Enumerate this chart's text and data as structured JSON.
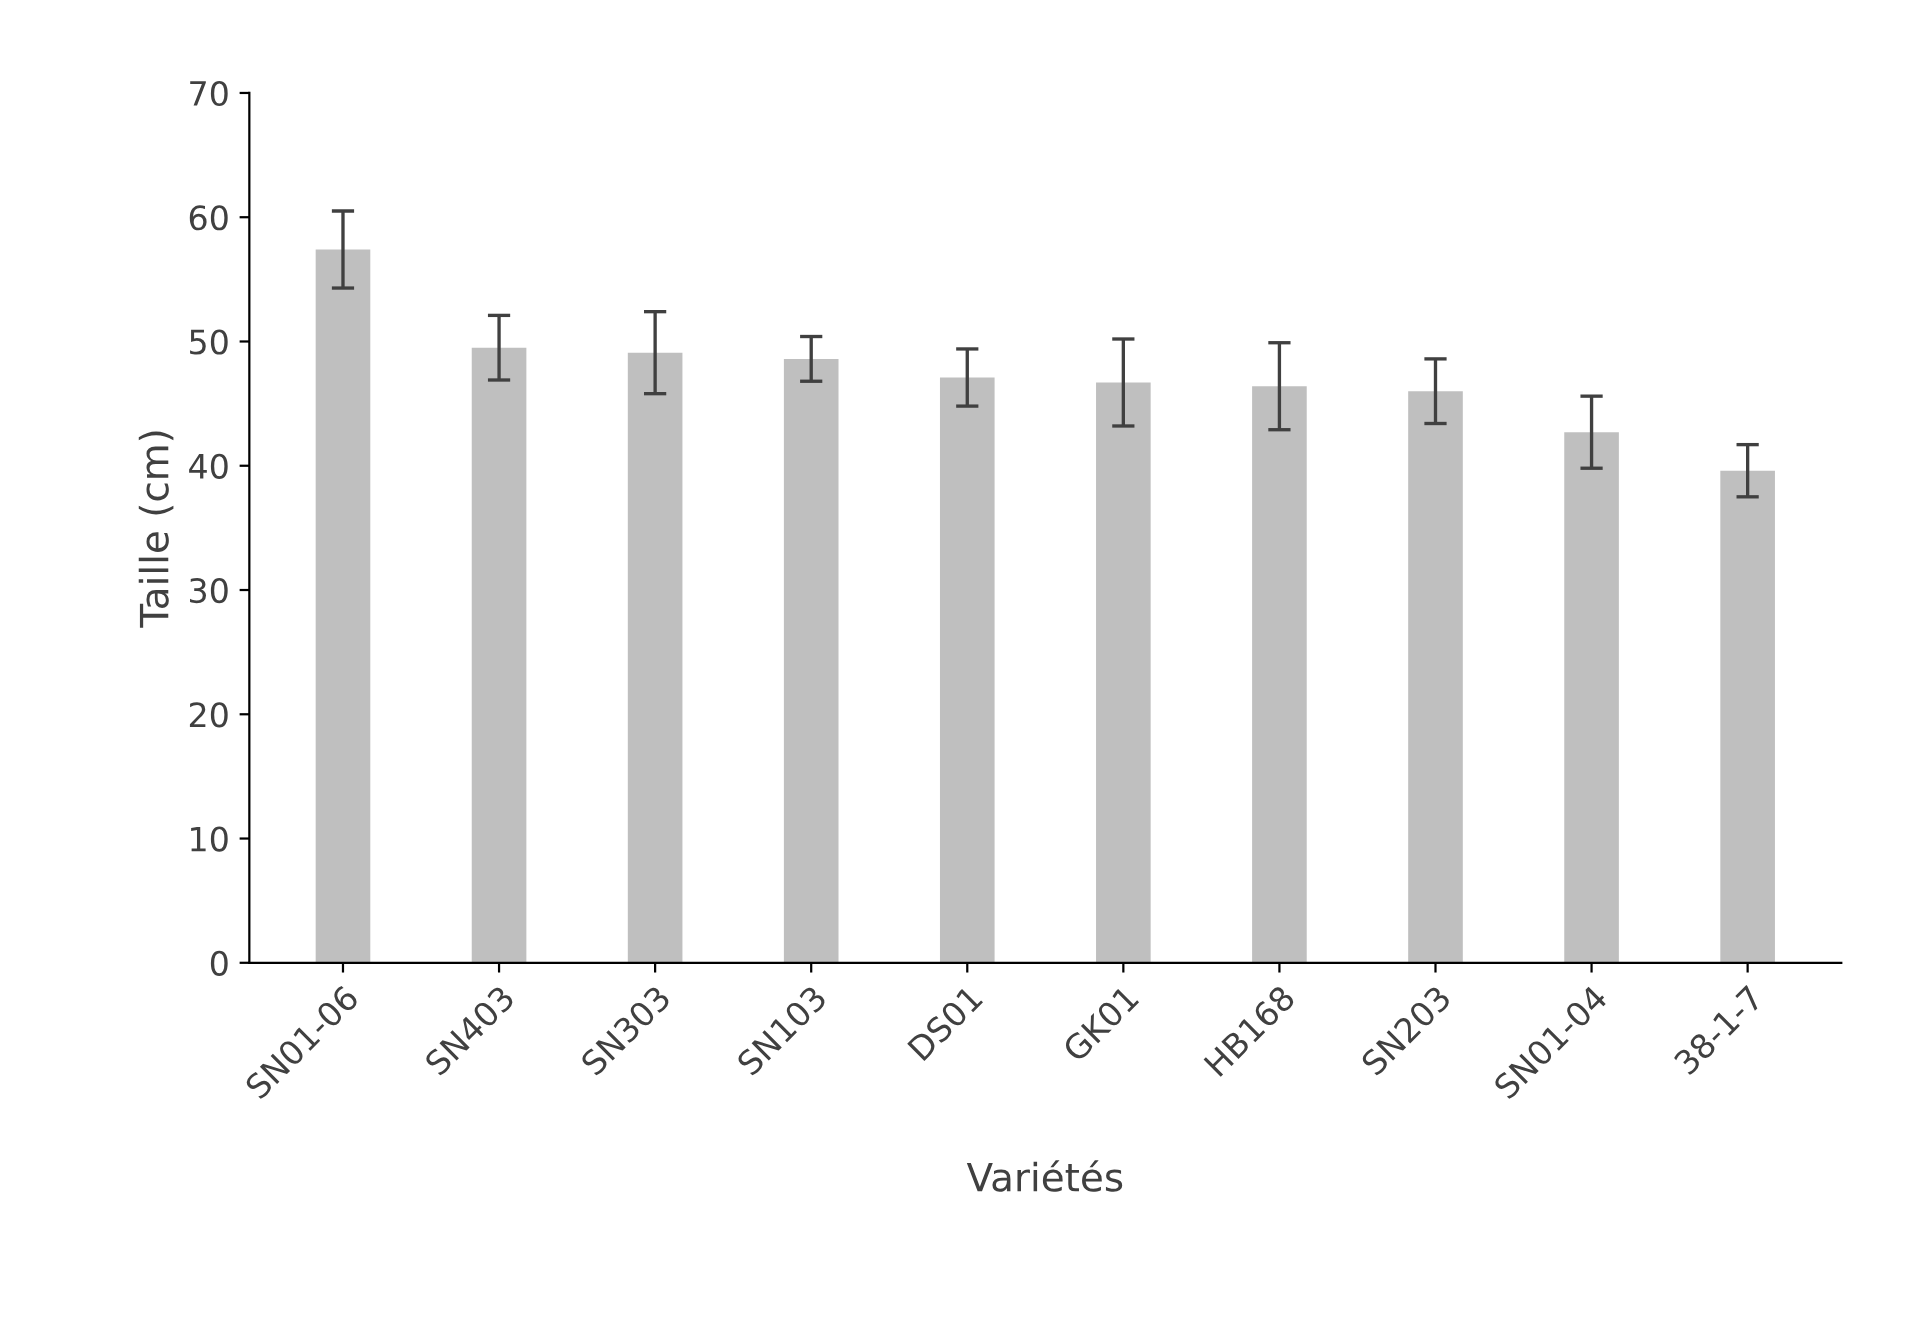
{
  "chart_data": {
    "type": "bar",
    "xlabel": "Variétés",
    "ylabel": "Taille (cm)",
    "categories": [
      "SN01-06",
      "SN403",
      "SN303",
      "SN103",
      "DS01",
      "GK01",
      "HB168",
      "SN203",
      "SN01-04",
      "38-1-7"
    ],
    "values": [
      57.4,
      49.5,
      49.1,
      48.6,
      47.1,
      46.7,
      46.4,
      46.0,
      42.7,
      39.6
    ],
    "errors": [
      3.1,
      2.6,
      3.3,
      1.8,
      2.3,
      3.5,
      3.5,
      2.6,
      2.9,
      2.1
    ],
    "color": "#bfbfbf",
    "ylim": [
      0,
      70
    ],
    "yticks": [
      0,
      10,
      20,
      30,
      40,
      50,
      60,
      70
    ],
    "grid": false,
    "legend": false
  }
}
